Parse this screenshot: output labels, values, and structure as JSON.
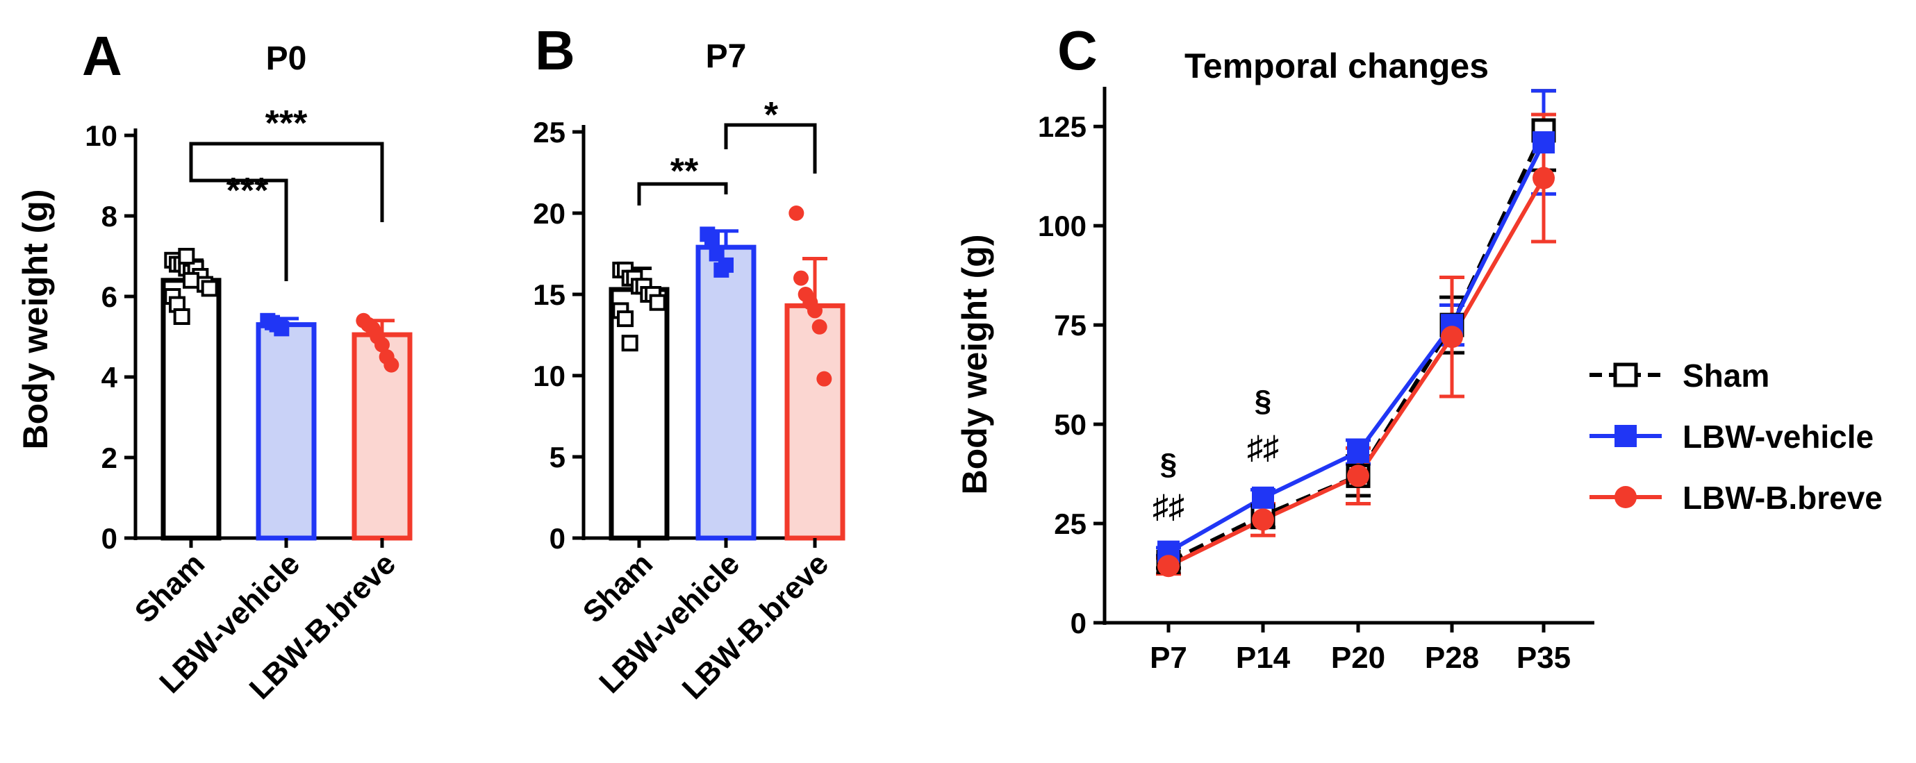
{
  "colors": {
    "sham": "#000000",
    "vehicle": "#2036f5",
    "vehicle_fill": "#c9d2f7",
    "breve": "#f23a2b",
    "breve_fill": "#fbd6d1"
  },
  "chart_data": [
    {
      "panel": "A",
      "type": "bar",
      "title": "P0",
      "ylabel": "Body weight (g)",
      "ylim": [
        0,
        10
      ],
      "yticks": [
        "0",
        "2",
        "4",
        "6",
        "8",
        "10"
      ],
      "categories": [
        "Sham",
        "LBW-vehicle",
        "LBW-B.breve"
      ],
      "means": [
        6.4,
        5.3,
        5.05
      ],
      "errors": [
        0.5,
        0.15,
        0.35
      ],
      "points": [
        [
          6.9,
          6.8,
          6.8,
          6.7,
          6.6,
          6.7,
          6.5,
          6.3,
          6.2,
          6.0,
          5.8,
          5.5,
          7.0,
          6.4
        ],
        [
          5.4,
          5.35,
          5.3,
          5.2
        ],
        [
          5.4,
          5.3,
          5.2,
          5.0,
          4.8,
          4.5,
          4.3
        ]
      ],
      "comparisons": [
        {
          "label": "***",
          "from": 0,
          "to": 1
        },
        {
          "label": "***",
          "from": 0,
          "to": 2
        }
      ]
    },
    {
      "panel": "B",
      "type": "bar",
      "title": "P7",
      "ylabel": "",
      "ylim": [
        0,
        25
      ],
      "yticks": [
        "0",
        "5",
        "10",
        "15",
        "20",
        "25"
      ],
      "categories": [
        "Sham",
        "LBW-vehicle",
        "LBW-B.breve"
      ],
      "means": [
        15.3,
        17.9,
        14.3
      ],
      "errors": [
        1.3,
        1.0,
        2.9
      ],
      "points": [
        [
          16.5,
          16.5,
          16.0,
          16.0,
          15.5,
          15.5,
          15.0,
          15.0,
          14.5,
          14.0,
          13.5,
          12.0
        ],
        [
          18.7,
          18.5,
          17.5,
          16.5,
          16.8
        ],
        [
          20.0,
          16.0,
          15.0,
          14.5,
          14.0,
          13.0,
          9.8
        ]
      ],
      "comparisons": [
        {
          "label": "**",
          "from": 0,
          "to": 1
        },
        {
          "label": "*",
          "from": 1,
          "to": 2
        }
      ]
    },
    {
      "panel": "C",
      "type": "line",
      "title": "Temporal changes",
      "ylabel": "Body weight (g)",
      "ylim": [
        0,
        135
      ],
      "yticks": [
        "0",
        "25",
        "50",
        "75",
        "100",
        "125"
      ],
      "categories": [
        "P7",
        "P14",
        "P20",
        "P28",
        "P35"
      ],
      "series": [
        {
          "name": "Sham",
          "values": [
            15.3,
            27,
            37,
            75,
            124
          ],
          "errors": [
            1.5,
            3,
            5,
            7,
            10
          ]
        },
        {
          "name": "LBW-vehicle",
          "values": [
            17.9,
            31.5,
            43,
            75,
            121
          ],
          "errors": [
            1.0,
            2,
            3,
            5,
            13
          ]
        },
        {
          "name": "LBW-B.breve",
          "values": [
            14.3,
            26,
            37,
            72,
            112
          ],
          "errors": [
            2.0,
            4,
            7,
            15,
            16
          ]
        }
      ],
      "annotations": [
        {
          "category": "P7",
          "symbol": "§",
          "mark": "♯♯"
        },
        {
          "category": "P14",
          "symbol": "§",
          "mark": "♯♯"
        }
      ]
    }
  ]
}
